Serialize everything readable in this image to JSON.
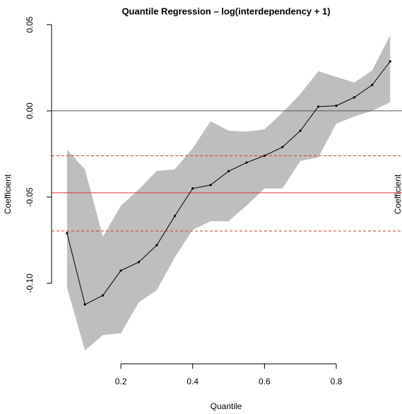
{
  "chart_data": {
    "type": "quantile-band",
    "title": "Quantile Regression – log(interdependency + 1)",
    "xlabel": "Quantile",
    "ylabel": "Coefficient",
    "ylabel_right": "Coefficient",
    "x": [
      0.05,
      0.1,
      0.15,
      0.2,
      0.25,
      0.3,
      0.35,
      0.4,
      0.45,
      0.5,
      0.55,
      0.6,
      0.65,
      0.7,
      0.75,
      0.8,
      0.85,
      0.9,
      0.95
    ],
    "values": [
      -0.0709,
      -0.1123,
      -0.107,
      -0.0926,
      -0.0877,
      -0.0779,
      -0.061,
      -0.045,
      -0.043,
      -0.035,
      -0.03,
      -0.026,
      -0.021,
      -0.0115,
      0.0025,
      0.003,
      0.0078,
      0.015,
      0.0287
    ],
    "ci_lower": [
      -0.1025,
      -0.139,
      -0.13,
      -0.129,
      -0.111,
      -0.104,
      -0.085,
      -0.069,
      -0.064,
      -0.064,
      -0.055,
      -0.045,
      -0.045,
      -0.029,
      -0.027,
      -0.0074,
      -0.0033,
      0.0,
      0.005
    ],
    "ci_upper": [
      -0.0225,
      -0.034,
      -0.073,
      -0.055,
      -0.0455,
      -0.0348,
      -0.034,
      -0.0217,
      -0.006,
      -0.0115,
      -0.012,
      -0.0107,
      -0.001,
      0.0098,
      0.023,
      0.0197,
      0.0164,
      0.0234,
      0.0439
    ],
    "color": "#000000",
    "band_color": "#bebebe",
    "hlines": [
      {
        "value": 0,
        "color": "#555555",
        "dashed": false
      },
      {
        "value": -0.0475,
        "color": "#e03030",
        "dashed": false
      },
      {
        "value": -0.026,
        "color": "#e03030",
        "dashed": true
      },
      {
        "value": -0.0697,
        "color": "#e03030",
        "dashed": true
      }
    ],
    "xlim": [
      0.007,
      0.983
    ],
    "ylim": [
      -0.1467,
      0.052
    ],
    "xticks": [
      0.2,
      0.4,
      0.6,
      0.8
    ],
    "yticks": [
      0.05,
      {
        "value": 0,
        "label": "0.00"
      },
      -0.05,
      {
        "value": -0.1,
        "label": "-0.10"
      }
    ]
  }
}
